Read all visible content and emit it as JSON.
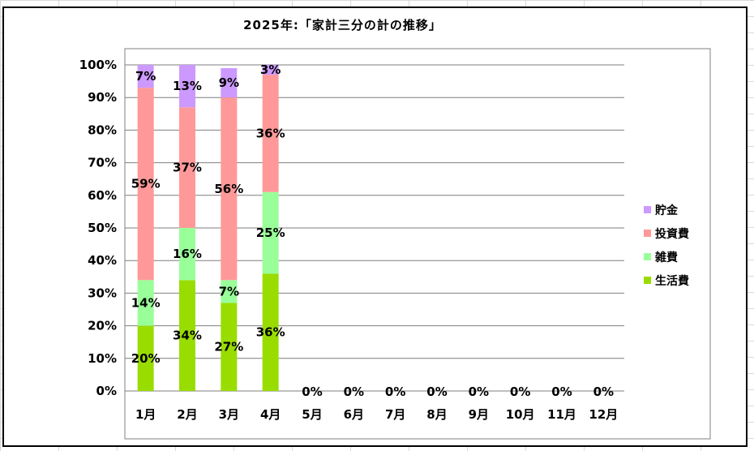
{
  "chart_data": {
    "type": "bar",
    "stacked": true,
    "percent_stacked": true,
    "title": "2025年:「家計三分の計の推移」",
    "categories": [
      "1月",
      "2月",
      "3月",
      "4月",
      "5月",
      "6月",
      "7月",
      "8月",
      "9月",
      "10月",
      "11月",
      "12月"
    ],
    "y_tick_labels": [
      "0%",
      "10%",
      "20%",
      "30%",
      "40%",
      "50%",
      "60%",
      "70%",
      "80%",
      "90%",
      "100%"
    ],
    "ylim": [
      0,
      100
    ],
    "grid": true,
    "legend_position": "right",
    "series": [
      {
        "name": "生活費",
        "color": "#99dd00",
        "values": [
          20,
          34,
          27,
          36,
          0,
          0,
          0,
          0,
          0,
          0,
          0,
          0
        ],
        "labels": [
          "20%",
          "34%",
          "27%",
          "36%",
          "0%",
          "0%",
          "0%",
          "0%",
          "0%",
          "0%",
          "0%",
          "0%"
        ]
      },
      {
        "name": "雑費",
        "color": "#99ff99",
        "values": [
          14,
          16,
          7,
          25,
          0,
          0,
          0,
          0,
          0,
          0,
          0,
          0
        ],
        "labels": [
          "14%",
          "16%",
          "7%",
          "25%",
          "",
          "",
          "",
          "",
          "",
          "",
          "",
          ""
        ]
      },
      {
        "name": "投資費",
        "color": "#ff9999",
        "values": [
          59,
          37,
          56,
          36,
          0,
          0,
          0,
          0,
          0,
          0,
          0,
          0
        ],
        "labels": [
          "59%",
          "37%",
          "56%",
          "36%",
          "",
          "",
          "",
          "",
          "",
          "",
          "",
          ""
        ]
      },
      {
        "name": "貯金",
        "color": "#cc99ff",
        "values": [
          7,
          13,
          9,
          3,
          0,
          0,
          0,
          0,
          0,
          0,
          0,
          0
        ],
        "labels": [
          "7%",
          "13%",
          "9%",
          "3%",
          "",
          "",
          "",
          "",
          "",
          "",
          "",
          ""
        ]
      }
    ],
    "legend_order": [
      "貯金",
      "投資費",
      "雑費",
      "生活費"
    ]
  }
}
